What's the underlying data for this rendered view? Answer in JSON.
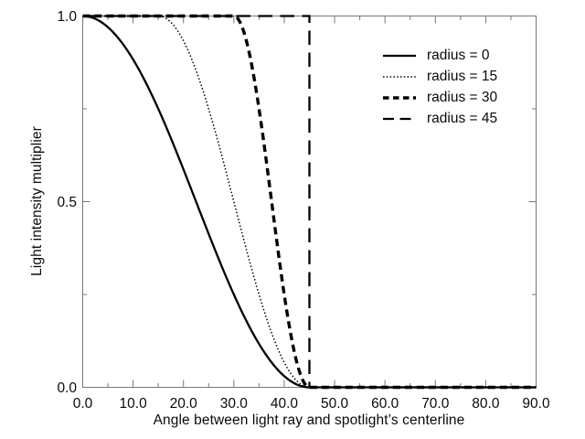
{
  "colors": {
    "curve": "#000000",
    "frame": "#787878",
    "tick": "#787878",
    "text": "#0a0a0a",
    "background": "#ffffff"
  },
  "chart_data": {
    "type": "line",
    "title": "",
    "xlabel": "Angle between light ray and spotlight’s centerline",
    "ylabel": "Light intensity multiplier",
    "xlim": [
      0,
      90
    ],
    "ylim": [
      0,
      1
    ],
    "grid": false,
    "x_major_ticks": [
      0,
      10,
      20,
      30,
      40,
      50,
      60,
      70,
      80,
      90
    ],
    "x_major_tick_labels": [
      "0.0",
      "10.0",
      "20.0",
      "30.0",
      "40.0",
      "50.0",
      "60.0",
      "70.0",
      "80.0",
      "90.0"
    ],
    "x_minor_ticks": [
      5,
      15,
      25,
      35,
      45,
      55,
      65,
      75,
      85
    ],
    "y_major_ticks": [
      0,
      0.5,
      1
    ],
    "y_major_tick_labels": [
      "0.0",
      "0.5",
      "1.0"
    ],
    "y_minor_ticks": [
      0.25,
      0.75
    ],
    "falloff_deg": 45,
    "legend": {
      "position": "upper-right",
      "border": false
    },
    "series": [
      {
        "name": "radius = 0",
        "radius_deg": 0,
        "style": "solid",
        "points": [
          [
            0,
            1.0
          ],
          [
            5,
            0.97
          ],
          [
            10,
            0.88
          ],
          [
            15,
            0.75
          ],
          [
            20,
            0.59
          ],
          [
            22.5,
            0.5
          ],
          [
            25,
            0.41
          ],
          [
            30,
            0.25
          ],
          [
            35,
            0.12
          ],
          [
            40,
            0.03
          ],
          [
            45,
            0.0
          ],
          [
            90,
            0.0
          ]
        ]
      },
      {
        "name": "radius = 15",
        "radius_deg": 15,
        "style": "dotted",
        "points": [
          [
            0,
            1.0
          ],
          [
            15,
            1.0
          ],
          [
            20,
            0.93
          ],
          [
            25,
            0.75
          ],
          [
            30,
            0.5
          ],
          [
            35,
            0.25
          ],
          [
            40,
            0.07
          ],
          [
            45,
            0.0
          ],
          [
            90,
            0.0
          ]
        ]
      },
      {
        "name": "radius = 30",
        "radius_deg": 30,
        "style": "dashed-short",
        "points": [
          [
            0,
            1.0
          ],
          [
            30,
            1.0
          ],
          [
            35,
            0.75
          ],
          [
            37.5,
            0.5
          ],
          [
            40,
            0.25
          ],
          [
            45,
            0.0
          ],
          [
            90,
            0.0
          ]
        ]
      },
      {
        "name": "radius = 45",
        "radius_deg": 45,
        "style": "dashed-long",
        "points": [
          [
            0,
            1.0
          ],
          [
            45,
            1.0
          ],
          [
            45,
            0.0
          ],
          [
            90,
            0.0
          ]
        ]
      }
    ]
  }
}
